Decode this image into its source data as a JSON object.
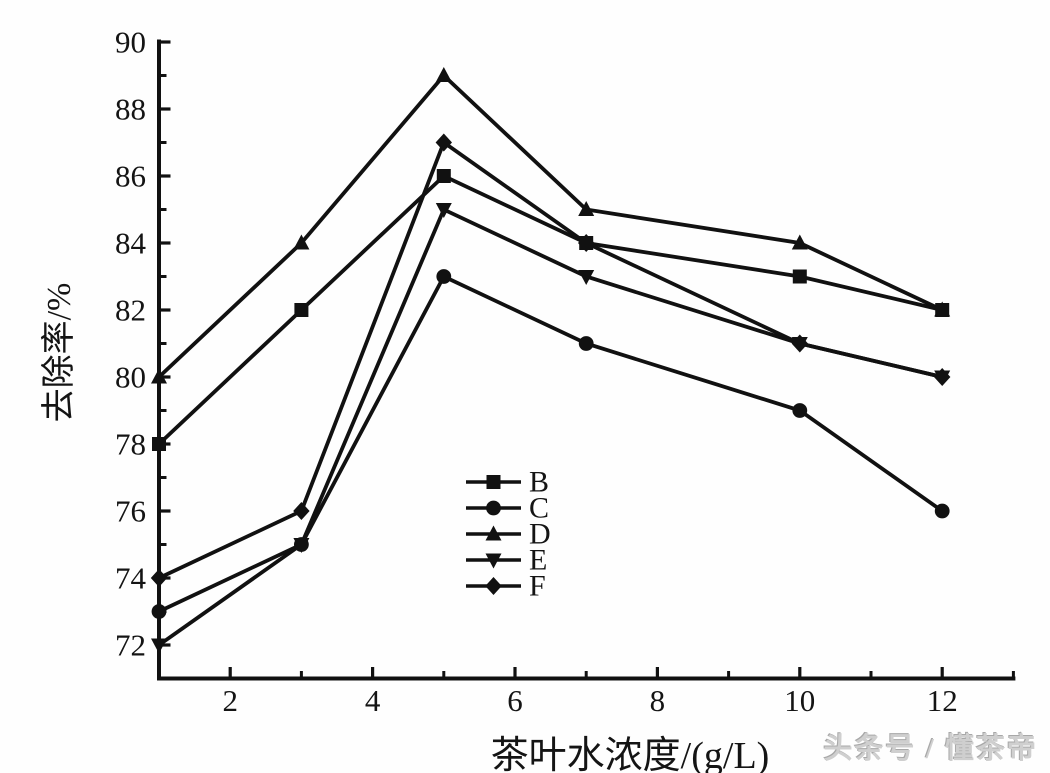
{
  "watermark": {
    "text": "头条号 / 懂茶帝"
  },
  "chart_data": {
    "type": "line",
    "title": "",
    "xlabel": "茶叶水浓度/(g/L)",
    "ylabel": "去除率/%",
    "x": [
      1,
      3,
      5,
      7,
      10,
      12
    ],
    "xlim": [
      1,
      13
    ],
    "ylim": [
      71,
      90
    ],
    "x_major_ticks": [
      2,
      4,
      6,
      8,
      10,
      12
    ],
    "x_minor_ticks": [
      3,
      5,
      7,
      9,
      11,
      13
    ],
    "y_major_ticks": [
      72,
      74,
      76,
      78,
      80,
      82,
      84,
      86,
      88,
      90
    ],
    "y_minor_ticks": [
      73,
      75,
      77,
      79,
      81,
      83,
      85,
      87,
      89
    ],
    "grid": false,
    "legend_position": "inside-lower-center",
    "line_color": "#111111",
    "series": [
      {
        "name": "B",
        "marker": "square",
        "values": [
          78,
          82,
          86,
          84,
          83,
          82
        ]
      },
      {
        "name": "C",
        "marker": "circle",
        "values": [
          73,
          75,
          83,
          81,
          79,
          76
        ]
      },
      {
        "name": "D",
        "marker": "triangle-up",
        "values": [
          80,
          84,
          89,
          85,
          84,
          82
        ]
      },
      {
        "name": "E",
        "marker": "triangle-down",
        "values": [
          72,
          75,
          85,
          83,
          81,
          80
        ]
      },
      {
        "name": "F",
        "marker": "diamond",
        "values": [
          74,
          76,
          87,
          84,
          81,
          80
        ]
      }
    ]
  }
}
